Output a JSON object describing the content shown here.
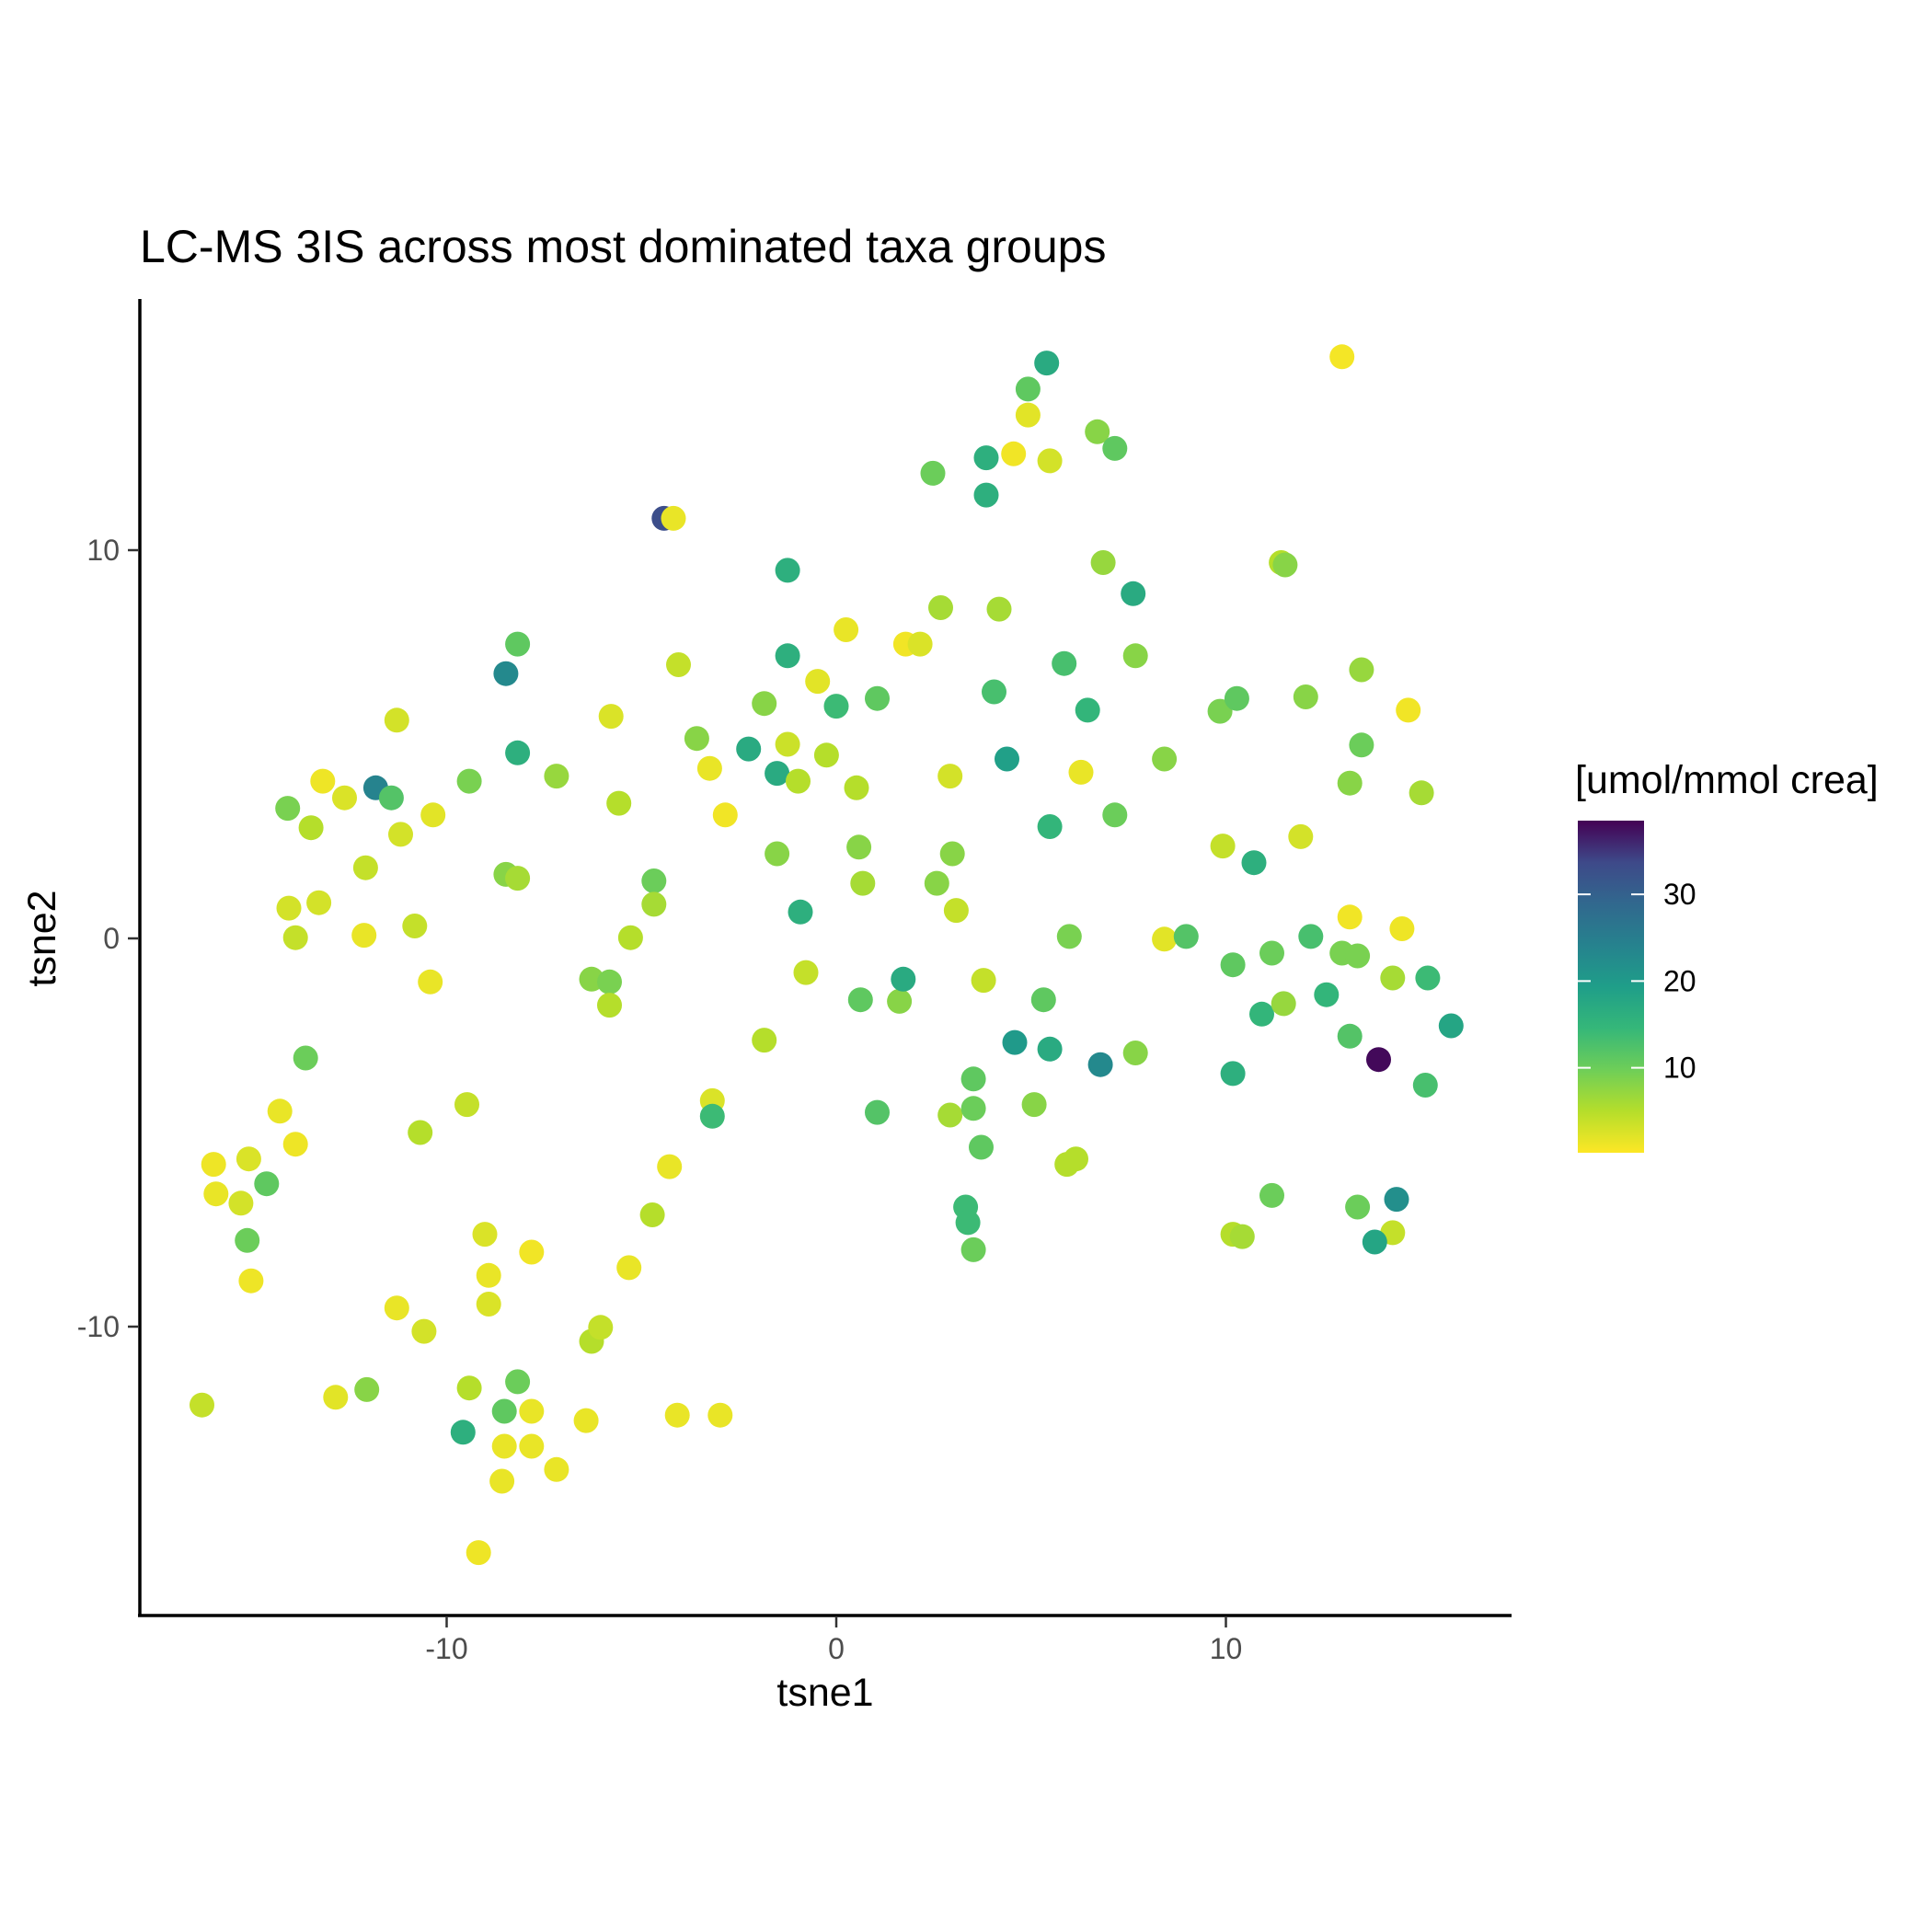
{
  "chart_data": {
    "type": "scatter",
    "title": "LC-MS 3IS across most dominated taxa groups",
    "xlabel": "tsne1",
    "ylabel": "tsne2",
    "xlim": [
      -17.6,
      17.6
    ],
    "ylim": [
      -17.4,
      16.5
    ],
    "xticks": [
      -10,
      0,
      10
    ],
    "xtick_labels": [
      "-10",
      "0",
      "10"
    ],
    "yticks": [
      -10,
      0,
      10
    ],
    "ytick_labels": [
      "-10",
      "0",
      "10"
    ],
    "grid": false,
    "legend": {
      "title": "[umol/mmol crea]",
      "placement": "right",
      "type": "continuous colorbar",
      "palette": "viridis (reversed)",
      "range": [
        0.2,
        38.5
      ],
      "ticks": [
        10,
        20,
        30
      ],
      "tick_labels": [
        "10",
        "20",
        "30"
      ]
    },
    "point_fields": [
      "tsne1",
      "tsne2",
      "umol_mmol_crea"
    ],
    "points": [
      [
        12.98,
        14.98,
        0.8
      ],
      [
        5.4,
        14.82,
        17
      ],
      [
        4.92,
        14.15,
        11
      ],
      [
        4.92,
        13.48,
        2
      ],
      [
        4.55,
        12.48,
        1
      ],
      [
        3.85,
        12.38,
        16
      ],
      [
        5.48,
        12.3,
        3
      ],
      [
        6.7,
        13.05,
        8
      ],
      [
        7.15,
        12.62,
        11
      ],
      [
        2.48,
        11.98,
        10
      ],
      [
        3.85,
        11.42,
        16
      ],
      [
        -4.42,
        10.82,
        33
      ],
      [
        -4.18,
        10.82,
        1.5
      ],
      [
        -1.25,
        9.48,
        16
      ],
      [
        6.85,
        9.68,
        7
      ],
      [
        7.62,
        8.88,
        17
      ],
      [
        11.42,
        9.68,
        5
      ],
      [
        11.52,
        9.62,
        8
      ],
      [
        2.68,
        8.52,
        6
      ],
      [
        4.18,
        8.48,
        6
      ],
      [
        0.25,
        7.95,
        1.5
      ],
      [
        1.78,
        7.58,
        1
      ],
      [
        2.15,
        7.58,
        2.5
      ],
      [
        -1.25,
        7.28,
        16
      ],
      [
        -8.18,
        7.58,
        11
      ],
      [
        5.85,
        7.08,
        13
      ],
      [
        7.68,
        7.28,
        8
      ],
      [
        -4.05,
        7.05,
        4
      ],
      [
        -8.48,
        6.82,
        23
      ],
      [
        -0.48,
        6.62,
        2
      ],
      [
        1.05,
        6.18,
        11
      ],
      [
        4.05,
        6.35,
        13
      ],
      [
        -1.85,
        6.05,
        8
      ],
      [
        0.0,
        5.98,
        14
      ],
      [
        6.45,
        5.88,
        15
      ],
      [
        9.85,
        5.85,
        9
      ],
      [
        10.28,
        6.18,
        11
      ],
      [
        12.05,
        6.22,
        8
      ],
      [
        13.48,
        6.92,
        7
      ],
      [
        14.68,
        5.88,
        1
      ],
      [
        -11.28,
        5.62,
        3
      ],
      [
        -5.78,
        5.72,
        2.5
      ],
      [
        -3.58,
        5.15,
        8
      ],
      [
        -2.25,
        4.88,
        17
      ],
      [
        -1.25,
        5.0,
        3.5
      ],
      [
        -0.25,
        4.72,
        5
      ],
      [
        4.38,
        4.62,
        19
      ],
      [
        8.42,
        4.62,
        8
      ],
      [
        -8.18,
        4.78,
        16
      ],
      [
        -11.82,
        3.88,
        24
      ],
      [
        -11.42,
        3.62,
        12
      ],
      [
        -9.42,
        4.05,
        9
      ],
      [
        -7.18,
        4.18,
        7
      ],
      [
        -13.18,
        4.05,
        1.2
      ],
      [
        -12.62,
        3.62,
        2.5
      ],
      [
        -14.08,
        3.35,
        9
      ],
      [
        -13.48,
        2.85,
        5
      ],
      [
        -11.18,
        2.68,
        3
      ],
      [
        -10.35,
        3.18,
        2
      ],
      [
        -5.58,
        3.48,
        5
      ],
      [
        -3.25,
        4.38,
        1.5
      ],
      [
        -2.85,
        3.18,
        1
      ],
      [
        -1.52,
        4.25,
        17
      ],
      [
        -0.98,
        4.05,
        5
      ],
      [
        0.52,
        3.88,
        5
      ],
      [
        2.92,
        4.18,
        3
      ],
      [
        6.28,
        4.28,
        1.5
      ],
      [
        5.48,
        2.88,
        15
      ],
      [
        7.15,
        3.18,
        10
      ],
      [
        13.18,
        4.0,
        8
      ],
      [
        13.48,
        4.98,
        10
      ],
      [
        15.02,
        3.75,
        6
      ],
      [
        -12.08,
        1.82,
        4
      ],
      [
        -8.48,
        1.65,
        8
      ],
      [
        -8.18,
        1.55,
        6
      ],
      [
        -4.68,
        1.48,
        10
      ],
      [
        -1.52,
        2.18,
        8
      ],
      [
        0.58,
        2.35,
        8
      ],
      [
        0.68,
        1.42,
        6
      ],
      [
        2.58,
        1.42,
        8
      ],
      [
        2.98,
        2.18,
        8
      ],
      [
        3.08,
        0.72,
        4
      ],
      [
        9.92,
        2.38,
        4
      ],
      [
        10.72,
        1.95,
        16
      ],
      [
        11.92,
        2.62,
        3
      ],
      [
        -14.05,
        0.78,
        3
      ],
      [
        -13.28,
        0.92,
        3
      ],
      [
        -13.88,
        0.02,
        4
      ],
      [
        -12.12,
        0.08,
        1.5
      ],
      [
        -10.82,
        0.32,
        4
      ],
      [
        -4.68,
        0.88,
        6
      ],
      [
        -5.28,
        0.02,
        5
      ],
      [
        -0.92,
        0.68,
        16
      ],
      [
        -0.78,
        -0.88,
        4
      ],
      [
        5.98,
        0.05,
        9
      ],
      [
        8.42,
        -0.02,
        2
      ],
      [
        8.98,
        0.05,
        12
      ],
      [
        12.18,
        0.05,
        13
      ],
      [
        13.18,
        0.55,
        1
      ],
      [
        14.52,
        0.25,
        1.2
      ],
      [
        10.18,
        -0.68,
        11
      ],
      [
        11.18,
        -0.38,
        10
      ],
      [
        12.98,
        -0.38,
        9
      ],
      [
        13.38,
        -0.45,
        9
      ],
      [
        -10.42,
        -1.12,
        1.5
      ],
      [
        -6.28,
        -1.05,
        8
      ],
      [
        -5.82,
        -1.12,
        9
      ],
      [
        -5.82,
        -1.72,
        5
      ],
      [
        0.62,
        -1.58,
        11
      ],
      [
        1.62,
        -1.62,
        8
      ],
      [
        1.72,
        -1.05,
        17
      ],
      [
        3.78,
        -1.08,
        4
      ],
      [
        5.32,
        -1.58,
        11
      ],
      [
        14.28,
        -1.02,
        6
      ],
      [
        15.18,
        -1.02,
        14
      ],
      [
        -1.85,
        -2.62,
        5
      ],
      [
        -13.62,
        -3.08,
        10
      ],
      [
        4.58,
        -2.68,
        20
      ],
      [
        5.48,
        -2.85,
        17
      ],
      [
        6.78,
        -3.25,
        23
      ],
      [
        7.68,
        -2.95,
        8
      ],
      [
        10.92,
        -1.95,
        15
      ],
      [
        11.48,
        -1.68,
        7
      ],
      [
        12.58,
        -1.45,
        15
      ],
      [
        13.18,
        -2.52,
        12
      ],
      [
        13.92,
        -3.12,
        38
      ],
      [
        15.78,
        -2.25,
        18
      ],
      [
        -14.28,
        -4.45,
        1.5
      ],
      [
        -13.88,
        -5.3,
        1.2
      ],
      [
        -9.48,
        -4.28,
        4
      ],
      [
        -10.68,
        -5.0,
        5
      ],
      [
        -3.18,
        -4.18,
        2.5
      ],
      [
        -3.18,
        -4.58,
        14
      ],
      [
        -4.28,
        -5.88,
        1.5
      ],
      [
        1.05,
        -4.48,
        12
      ],
      [
        2.92,
        -4.55,
        6
      ],
      [
        3.52,
        -3.62,
        11
      ],
      [
        3.52,
        -4.38,
        10
      ],
      [
        3.72,
        -5.38,
        11
      ],
      [
        5.08,
        -4.28,
        8
      ],
      [
        5.92,
        -5.82,
        5
      ],
      [
        6.15,
        -5.68,
        5
      ],
      [
        10.18,
        -3.48,
        16
      ],
      [
        15.12,
        -3.78,
        13
      ],
      [
        -15.98,
        -5.82,
        1.2
      ],
      [
        -15.92,
        -6.58,
        1.5
      ],
      [
        -15.28,
        -6.82,
        3
      ],
      [
        -15.08,
        -5.68,
        2.5
      ],
      [
        -14.62,
        -6.32,
        11
      ],
      [
        -15.12,
        -7.78,
        10
      ],
      [
        -15.02,
        -8.82,
        1.2
      ],
      [
        -9.02,
        -7.62,
        2.5
      ],
      [
        -7.82,
        -8.08,
        1
      ],
      [
        -4.72,
        -7.12,
        5
      ],
      [
        -5.32,
        -8.48,
        1.5
      ],
      [
        3.32,
        -6.92,
        14
      ],
      [
        3.38,
        -7.32,
        14
      ],
      [
        3.52,
        -8.02,
        10
      ],
      [
        10.18,
        -7.62,
        5
      ],
      [
        10.42,
        -7.68,
        6
      ],
      [
        11.18,
        -6.62,
        10
      ],
      [
        13.38,
        -6.92,
        10
      ],
      [
        14.28,
        -7.58,
        4
      ],
      [
        13.82,
        -7.82,
        18
      ],
      [
        14.38,
        -6.72,
        22
      ],
      [
        -16.28,
        -12.02,
        4
      ],
      [
        -12.85,
        -11.82,
        2
      ],
      [
        -12.05,
        -11.62,
        8
      ],
      [
        -11.28,
        -9.52,
        1.5
      ],
      [
        -10.58,
        -10.12,
        3
      ],
      [
        -8.92,
        -8.68,
        1.5
      ],
      [
        -8.92,
        -9.42,
        2.5
      ],
      [
        -9.42,
        -11.58,
        5
      ],
      [
        -8.18,
        -11.42,
        10
      ],
      [
        -8.52,
        -12.18,
        11
      ],
      [
        -9.58,
        -12.72,
        16
      ],
      [
        -8.52,
        -13.08,
        1.5
      ],
      [
        -7.82,
        -13.08,
        1.5
      ],
      [
        -7.82,
        -12.18,
        1.5
      ],
      [
        -7.18,
        -13.68,
        1.5
      ],
      [
        -8.58,
        -13.98,
        1.5
      ],
      [
        -6.28,
        -10.38,
        5
      ],
      [
        -6.05,
        -10.02,
        4
      ],
      [
        -6.42,
        -12.42,
        1.5
      ],
      [
        -4.08,
        -12.28,
        1.5
      ],
      [
        -2.98,
        -12.28,
        1.5
      ],
      [
        -9.18,
        -15.82,
        1.2
      ]
    ]
  }
}
